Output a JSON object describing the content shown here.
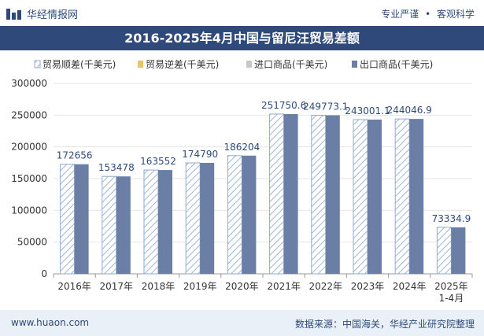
{
  "header": {
    "brand": "华经情报网",
    "tag1": "专业严谨",
    "tag2": "客观科学"
  },
  "chart_data": {
    "type": "bar",
    "title": "2016-2025年4月中国与留尼汪贸易差额",
    "categories": [
      "2016年",
      "2017年",
      "2018年",
      "2019年",
      "2020年",
      "2021年",
      "2022年",
      "2023年",
      "2024年",
      "2025年\n1-4月"
    ],
    "legend": [
      "贸易顺差(千美元)",
      "贸易逆差(千美元)",
      "进口商品(千美元)",
      "出口商品(千美元)"
    ],
    "series": [
      {
        "name": "贸易顺差(千美元)",
        "values": [
          172656,
          153478,
          163552,
          174790,
          186204,
          251750.6,
          249773.1,
          243001.1,
          244046.9,
          73334.9
        ]
      },
      {
        "name": "出口商品(千美元)",
        "values": [
          172656,
          153478,
          163552,
          174790,
          186204,
          251750.6,
          249773.1,
          243001.1,
          244046.9,
          73334.9
        ]
      }
    ],
    "data_labels": [
      "172656",
      "153478",
      "163552",
      "174790",
      "186204",
      "251750.6",
      "249773.1",
      "243001.1",
      "244046.9",
      "73334.9"
    ],
    "y_ticks": [
      "0",
      "50000",
      "100000",
      "150000",
      "200000",
      "250000",
      "300000"
    ],
    "ylim": [
      0,
      300000
    ],
    "legend_position": "top",
    "colors": {
      "surplus_stroke": "#8faad0",
      "export": "#6b7fa6",
      "import": "#c8c8c8",
      "deficit": "#e8c36a"
    }
  },
  "footer": {
    "site": "www.huaon.com",
    "source": "数据来源：中国海关，华经产业研究院整理"
  }
}
